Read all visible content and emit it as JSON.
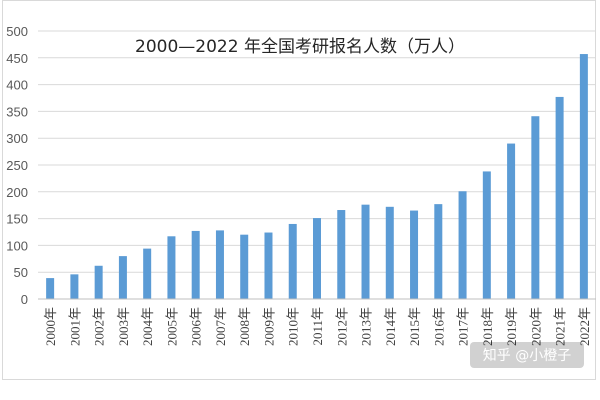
{
  "chart_data": {
    "type": "bar",
    "title": "2000—2022 年全国考研报名人数（万人）",
    "xlabel": "",
    "ylabel": "",
    "ylim": [
      0,
      500
    ],
    "yticks": [
      0,
      50,
      100,
      150,
      200,
      250,
      300,
      350,
      400,
      450,
      500
    ],
    "grid": true,
    "legend": "none",
    "categories": [
      "2000年",
      "2001年",
      "2002年",
      "2003年",
      "2004年",
      "2005年",
      "2006年",
      "2007年",
      "2008年",
      "2009年",
      "2010年",
      "2011年",
      "2012年",
      "2013年",
      "2014年",
      "2015年",
      "2016年",
      "2017年",
      "2018年",
      "2019年",
      "2020年",
      "2021年",
      "2022年"
    ],
    "values": [
      39,
      46,
      62,
      80,
      94,
      117,
      127,
      128,
      120,
      124,
      140,
      151,
      166,
      176,
      172,
      165,
      177,
      201,
      238,
      290,
      341,
      377,
      457
    ],
    "bar_color": "#5b9bd5"
  },
  "watermark": {
    "text": "知乎 @小橙子"
  }
}
